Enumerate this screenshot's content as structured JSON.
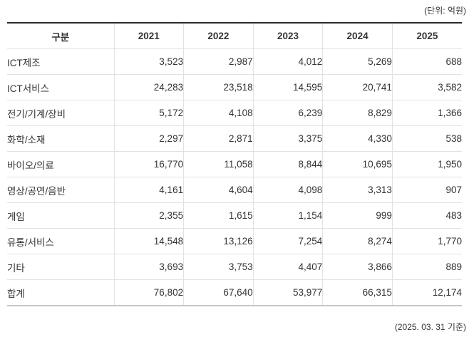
{
  "unit_note": "(단위: 억원)",
  "footer_note": "(2025. 03. 31 기준)",
  "table": {
    "columns": [
      "구분",
      "2021",
      "2022",
      "2023",
      "2024",
      "2025"
    ],
    "rows": [
      {
        "label": "ICT제조",
        "values": [
          "3,523",
          "2,987",
          "4,012",
          "5,269",
          "688"
        ]
      },
      {
        "label": "ICT서비스",
        "values": [
          "24,283",
          "23,518",
          "14,595",
          "20,741",
          "3,582"
        ]
      },
      {
        "label": "전기/기계/장비",
        "values": [
          "5,172",
          "4,108",
          "6,239",
          "8,829",
          "1,366"
        ]
      },
      {
        "label": "화학/소재",
        "values": [
          "2,297",
          "2,871",
          "3,375",
          "4,330",
          "538"
        ]
      },
      {
        "label": "바이오/의료",
        "values": [
          "16,770",
          "11,058",
          "8,844",
          "10,695",
          "1,950"
        ]
      },
      {
        "label": "영상/공연/음반",
        "values": [
          "4,161",
          "4,604",
          "4,098",
          "3,313",
          "907"
        ]
      },
      {
        "label": "게임",
        "values": [
          "2,355",
          "1,615",
          "1,154",
          "999",
          "483"
        ]
      },
      {
        "label": "유통/서비스",
        "values": [
          "14,548",
          "13,126",
          "7,254",
          "8,274",
          "1,770"
        ]
      },
      {
        "label": "기타",
        "values": [
          "3,693",
          "3,753",
          "4,407",
          "3,866",
          "889"
        ]
      },
      {
        "label": "합계",
        "values": [
          "76,802",
          "67,640",
          "53,977",
          "66,315",
          "12,174"
        ]
      }
    ]
  },
  "colors": {
    "text": "#333333",
    "table_top_border": "#2b2b2b",
    "table_bottom_border": "#c6c6c6",
    "grid_line": "#e2e2e2",
    "background": "#ffffff"
  },
  "chart_data": {
    "type": "table",
    "title": "연도별 업종 데이터 표",
    "unit_label": "(단위: 억원)",
    "as_of_label": "(2025. 03. 31 기준)",
    "categories": [
      "2021",
      "2022",
      "2023",
      "2024",
      "2025"
    ],
    "series": [
      {
        "name": "ICT제조",
        "values": [
          3523,
          2987,
          4012,
          5269,
          688
        ]
      },
      {
        "name": "ICT서비스",
        "values": [
          24283,
          23518,
          14595,
          20741,
          3582
        ]
      },
      {
        "name": "전기/기계/장비",
        "values": [
          5172,
          4108,
          6239,
          8829,
          1366
        ]
      },
      {
        "name": "화학/소재",
        "values": [
          2297,
          2871,
          3375,
          4330,
          538
        ]
      },
      {
        "name": "바이오/의료",
        "values": [
          16770,
          11058,
          8844,
          10695,
          1950
        ]
      },
      {
        "name": "영상/공연/음반",
        "values": [
          4161,
          4604,
          4098,
          3313,
          907
        ]
      },
      {
        "name": "게임",
        "values": [
          2355,
          1615,
          1154,
          999,
          483
        ]
      },
      {
        "name": "유통/서비스",
        "values": [
          14548,
          13126,
          7254,
          8274,
          1770
        ]
      },
      {
        "name": "기타",
        "values": [
          3693,
          3753,
          4407,
          3866,
          889
        ]
      },
      {
        "name": "합계",
        "values": [
          76802,
          67640,
          53977,
          66315,
          12174
        ]
      }
    ]
  }
}
